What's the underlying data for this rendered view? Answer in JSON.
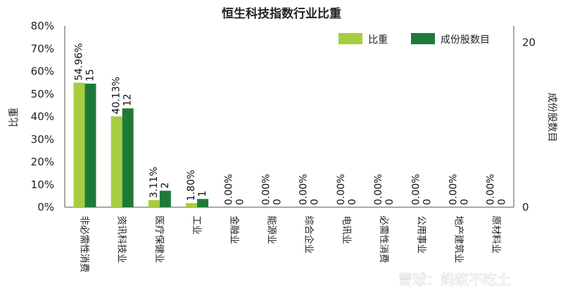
{
  "chart_data": {
    "type": "bar",
    "title": "恒生科技指数行业比重",
    "ylabel": "比重",
    "y2label": "成份股数目",
    "ylim": [
      0,
      80
    ],
    "y2lim": [
      0,
      22
    ],
    "yticks": [
      "0%",
      "10%",
      "20%",
      "30%",
      "40%",
      "50%",
      "60%",
      "70%",
      "80%"
    ],
    "y2ticks": [
      "0",
      "20"
    ],
    "legend_position": "top-right",
    "categories": [
      "非必需性消费",
      "资讯科技业",
      "医疗保健业",
      "工业",
      "金融业",
      "能源业",
      "综合企业",
      "电讯业",
      "必需性消费",
      "公用事业",
      "地产建筑业",
      "原材料业"
    ],
    "series": [
      {
        "name": "比重",
        "axis": "left",
        "color": "#a6cd3f",
        "values": [
          54.96,
          40.13,
          3.11,
          1.8,
          0.0,
          0.0,
          0.0,
          0.0,
          0.0,
          0.0,
          0.0,
          0.0
        ],
        "labels": [
          "54.96%",
          "40.13%",
          "3.11%",
          "1.80%",
          "0.00%",
          "0.00%",
          "0.00%",
          "0.00%",
          "0.00%",
          "0.00%",
          "0.00%",
          "0.00%"
        ]
      },
      {
        "name": "成份股数目",
        "axis": "right",
        "color": "#1f7a3a",
        "values": [
          15,
          12,
          2,
          1,
          0,
          0,
          0,
          0,
          0,
          0,
          0,
          0
        ],
        "labels": [
          "15",
          "12",
          "2",
          "1",
          "0",
          "0",
          "0",
          "0",
          "0",
          "0",
          "0",
          "0"
        ]
      }
    ],
    "grid": false
  },
  "watermark": "雪球：蚂蚁不吃土"
}
